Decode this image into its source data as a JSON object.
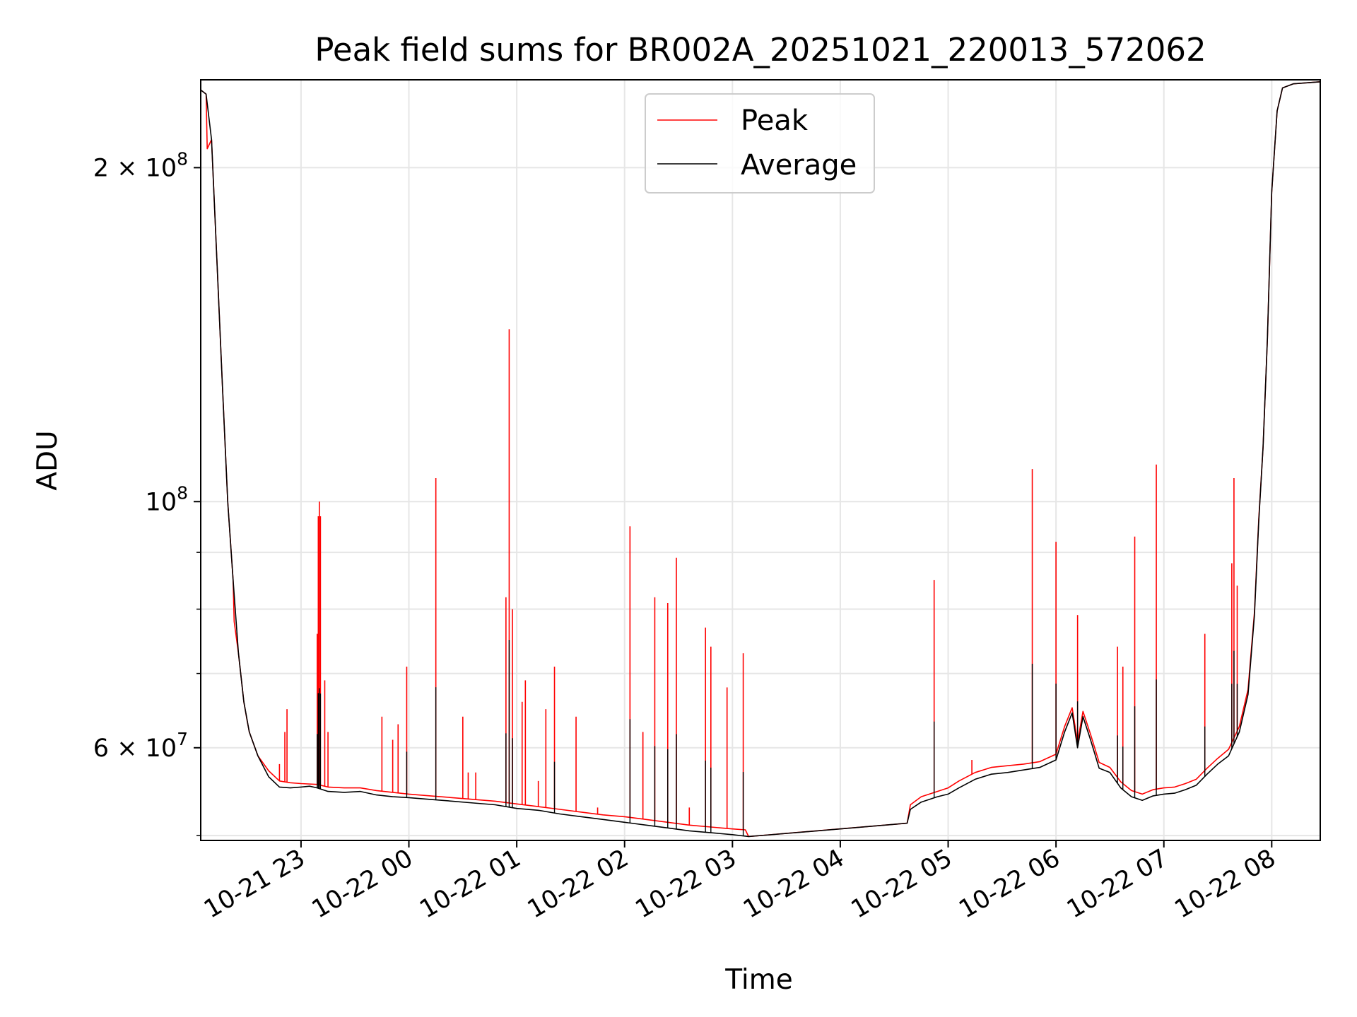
{
  "chart_data": {
    "type": "line",
    "title": "Peak field sums for BR002A_20251021_220013_572062",
    "xlabel": "Time",
    "ylabel": "ADU",
    "yscale": "log",
    "ylim": [
      49500000,
      240000000
    ],
    "xlim_hours": [
      22.07,
      32.45
    ],
    "grid": true,
    "legend_position": "upper center",
    "x_ticks": [
      {
        "hour": 23,
        "label": "10-21 23"
      },
      {
        "hour": 24,
        "label": "10-22 00"
      },
      {
        "hour": 25,
        "label": "10-22 01"
      },
      {
        "hour": 26,
        "label": "10-22 02"
      },
      {
        "hour": 27,
        "label": "10-22 03"
      },
      {
        "hour": 28,
        "label": "10-22 04"
      },
      {
        "hour": 29,
        "label": "10-22 05"
      },
      {
        "hour": 30,
        "label": "10-22 06"
      },
      {
        "hour": 31,
        "label": "10-22 07"
      },
      {
        "hour": 32,
        "label": "10-22 08"
      }
    ],
    "y_major_ticks": [
      {
        "value": 60000000,
        "mantissa": "6",
        "base": "10",
        "exponent": "7"
      },
      {
        "value": 100000000,
        "mantissa": "",
        "base": "10",
        "exponent": "8"
      },
      {
        "value": 200000000,
        "mantissa": "2",
        "base": "10",
        "exponent": "8"
      }
    ],
    "y_minor_ticks": [
      50000000,
      70000000,
      80000000,
      90000000
    ],
    "series": [
      {
        "name": "Average",
        "color": "#000000",
        "points": [
          [
            22.07,
            235000000
          ],
          [
            22.12,
            233000000
          ],
          [
            22.17,
            212000000
          ],
          [
            22.22,
            165000000
          ],
          [
            22.27,
            128000000
          ],
          [
            22.32,
            100000000
          ],
          [
            22.37,
            85000000
          ],
          [
            22.42,
            73000000
          ],
          [
            22.47,
            66000000
          ],
          [
            22.52,
            62000000
          ],
          [
            22.6,
            59000000
          ],
          [
            22.7,
            56500000
          ],
          [
            22.8,
            55300000
          ],
          [
            22.9,
            55200000
          ],
          [
            23.0,
            55300000
          ],
          [
            23.08,
            55400000
          ],
          [
            23.15,
            55200000
          ],
          [
            23.25,
            54800000
          ],
          [
            23.4,
            54700000
          ],
          [
            23.55,
            54800000
          ],
          [
            23.7,
            54400000
          ],
          [
            23.85,
            54200000
          ],
          [
            24.0,
            54100000
          ],
          [
            24.2,
            53900000
          ],
          [
            24.4,
            53700000
          ],
          [
            24.6,
            53500000
          ],
          [
            24.8,
            53300000
          ],
          [
            25.0,
            52900000
          ],
          [
            25.2,
            52700000
          ],
          [
            25.4,
            52300000
          ],
          [
            25.6,
            52000000
          ],
          [
            25.8,
            51700000
          ],
          [
            26.0,
            51400000
          ],
          [
            26.2,
            51100000
          ],
          [
            26.4,
            50800000
          ],
          [
            26.6,
            50500000
          ],
          [
            26.8,
            50300000
          ],
          [
            27.0,
            50100000
          ],
          [
            27.15,
            49900000
          ],
          [
            28.0,
            50700000
          ],
          [
            28.62,
            51300000
          ],
          [
            28.65,
            52800000
          ],
          [
            28.75,
            53600000
          ],
          [
            28.9,
            54200000
          ],
          [
            29.0,
            54500000
          ],
          [
            29.1,
            55200000
          ],
          [
            29.25,
            56200000
          ],
          [
            29.4,
            56800000
          ],
          [
            29.55,
            57000000
          ],
          [
            29.7,
            57300000
          ],
          [
            29.85,
            57600000
          ],
          [
            30.0,
            58500000
          ],
          [
            30.08,
            62000000
          ],
          [
            30.15,
            64500000
          ],
          [
            30.2,
            60000000
          ],
          [
            30.25,
            64000000
          ],
          [
            30.32,
            61000000
          ],
          [
            30.4,
            57500000
          ],
          [
            30.5,
            57000000
          ],
          [
            30.6,
            55200000
          ],
          [
            30.7,
            54200000
          ],
          [
            30.8,
            53800000
          ],
          [
            30.9,
            54300000
          ],
          [
            31.0,
            54500000
          ],
          [
            31.1,
            54600000
          ],
          [
            31.2,
            55000000
          ],
          [
            31.3,
            55500000
          ],
          [
            31.4,
            56800000
          ],
          [
            31.5,
            58000000
          ],
          [
            31.6,
            59000000
          ],
          [
            31.7,
            62000000
          ],
          [
            31.78,
            67000000
          ],
          [
            31.84,
            79000000
          ],
          [
            31.88,
            96000000
          ],
          [
            31.92,
            112000000
          ],
          [
            31.96,
            140000000
          ],
          [
            32.0,
            190000000
          ],
          [
            32.05,
            225000000
          ],
          [
            32.1,
            236000000
          ],
          [
            32.2,
            238000000
          ],
          [
            32.45,
            239000000
          ]
        ]
      },
      {
        "name": "Peak",
        "color": "#ff0000",
        "points": [
          [
            22.07,
            235000000
          ],
          [
            22.12,
            233000000
          ],
          [
            22.13,
            208000000
          ],
          [
            22.17,
            212000000
          ],
          [
            22.22,
            165000000
          ],
          [
            22.27,
            128000000
          ],
          [
            22.32,
            100000000
          ],
          [
            22.37,
            85000000
          ],
          [
            22.38,
            78000000
          ],
          [
            22.42,
            73000000
          ],
          [
            22.47,
            66000000
          ],
          [
            22.5,
            63500000
          ],
          [
            22.52,
            62000000
          ],
          [
            22.6,
            59000000
          ],
          [
            22.7,
            57200000
          ],
          [
            22.8,
            56000000
          ],
          [
            22.9,
            55800000
          ],
          [
            23.0,
            55700000
          ],
          [
            23.15,
            55600000
          ],
          [
            23.25,
            55300000
          ],
          [
            23.4,
            55200000
          ],
          [
            23.55,
            55200000
          ],
          [
            23.7,
            54900000
          ],
          [
            23.85,
            54700000
          ],
          [
            24.0,
            54500000
          ],
          [
            24.2,
            54300000
          ],
          [
            24.4,
            54100000
          ],
          [
            24.6,
            53900000
          ],
          [
            24.8,
            53700000
          ],
          [
            25.0,
            53400000
          ],
          [
            25.2,
            53100000
          ],
          [
            25.4,
            52800000
          ],
          [
            25.6,
            52500000
          ],
          [
            25.8,
            52200000
          ],
          [
            26.0,
            52000000
          ],
          [
            26.2,
            51700000
          ],
          [
            26.4,
            51400000
          ],
          [
            26.6,
            51100000
          ],
          [
            26.8,
            50900000
          ],
          [
            27.0,
            50700000
          ],
          [
            27.12,
            50600000
          ],
          [
            27.15,
            49900000
          ],
          [
            28.62,
            51300000
          ],
          [
            28.65,
            53300000
          ],
          [
            28.75,
            54200000
          ],
          [
            28.9,
            54800000
          ],
          [
            29.0,
            55200000
          ],
          [
            29.1,
            56000000
          ],
          [
            29.25,
            57000000
          ],
          [
            29.4,
            57600000
          ],
          [
            29.55,
            57800000
          ],
          [
            29.7,
            58000000
          ],
          [
            29.85,
            58300000
          ],
          [
            30.0,
            59200000
          ],
          [
            30.08,
            62700000
          ],
          [
            30.15,
            65200000
          ],
          [
            30.2,
            60700000
          ],
          [
            30.25,
            64700000
          ],
          [
            30.32,
            61700000
          ],
          [
            30.4,
            58200000
          ],
          [
            30.5,
            57600000
          ],
          [
            30.6,
            55900000
          ],
          [
            30.7,
            54900000
          ],
          [
            30.8,
            54500000
          ],
          [
            30.9,
            55000000
          ],
          [
            31.0,
            55200000
          ],
          [
            31.1,
            55300000
          ],
          [
            31.2,
            55700000
          ],
          [
            31.3,
            56200000
          ],
          [
            31.4,
            57500000
          ],
          [
            31.5,
            58700000
          ],
          [
            31.6,
            59800000
          ],
          [
            31.7,
            62700000
          ],
          [
            31.78,
            67700000
          ],
          [
            31.84,
            79500000
          ],
          [
            31.88,
            96500000
          ],
          [
            31.92,
            112000000
          ],
          [
            31.96,
            140000000
          ],
          [
            32.0,
            190000000
          ],
          [
            32.05,
            225000000
          ],
          [
            32.1,
            236000000
          ],
          [
            32.2,
            238000000
          ],
          [
            32.45,
            239000000
          ]
        ],
        "spikes": [
          [
            22.8,
            58000000
          ],
          [
            22.85,
            62000000
          ],
          [
            22.87,
            65000000
          ],
          [
            23.15,
            76000000
          ],
          [
            23.16,
            97000000
          ],
          [
            23.17,
            100000000
          ],
          [
            23.18,
            97000000
          ],
          [
            23.22,
            69000000
          ],
          [
            23.25,
            62000000
          ],
          [
            23.75,
            64000000
          ],
          [
            23.85,
            61000000
          ],
          [
            23.9,
            63000000
          ],
          [
            23.98,
            71000000
          ],
          [
            24.25,
            105000000
          ],
          [
            24.5,
            64000000
          ],
          [
            24.55,
            57000000
          ],
          [
            24.62,
            57000000
          ],
          [
            24.9,
            82000000
          ],
          [
            24.93,
            143000000
          ],
          [
            24.96,
            80000000
          ],
          [
            25.05,
            66000000
          ],
          [
            25.08,
            69000000
          ],
          [
            25.2,
            56000000
          ],
          [
            25.27,
            65000000
          ],
          [
            25.35,
            71000000
          ],
          [
            25.55,
            64000000
          ],
          [
            25.75,
            53000000
          ],
          [
            26.05,
            95000000
          ],
          [
            26.17,
            62000000
          ],
          [
            26.28,
            82000000
          ],
          [
            26.4,
            81000000
          ],
          [
            26.48,
            89000000
          ],
          [
            26.6,
            53000000
          ],
          [
            26.75,
            77000000
          ],
          [
            26.8,
            74000000
          ],
          [
            26.95,
            68000000
          ],
          [
            27.1,
            73000000
          ],
          [
            28.87,
            85000000
          ],
          [
            29.22,
            58500000
          ],
          [
            29.78,
            107000000
          ],
          [
            30.0,
            92000000
          ],
          [
            30.2,
            79000000
          ],
          [
            30.57,
            74000000
          ],
          [
            30.62,
            71000000
          ],
          [
            30.73,
            93000000
          ],
          [
            30.93,
            108000000
          ],
          [
            31.38,
            76000000
          ],
          [
            31.63,
            88000000
          ],
          [
            31.65,
            105000000
          ],
          [
            31.68,
            84000000
          ]
        ]
      }
    ]
  }
}
